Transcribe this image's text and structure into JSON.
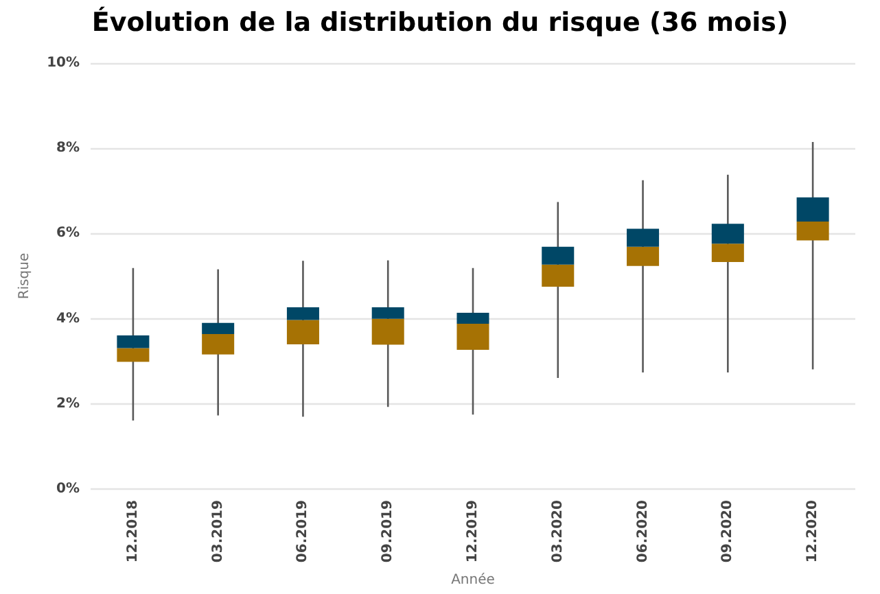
{
  "chart_data": {
    "type": "box",
    "title": "Évolution de la distribution du risque (36 mois)",
    "xlabel": "Année",
    "ylabel": "Risque",
    "categories": [
      "12.2018",
      "03.2019",
      "06.2019",
      "09.2019",
      "12.2019",
      "03.2020",
      "06.2020",
      "09.2020",
      "12.2020"
    ],
    "series": [
      {
        "color": "#004766",
        "colors": [
          "#a67204",
          "#a67204",
          "#a67204",
          "#a67204",
          "#a67204",
          "#a67204",
          "#a67204",
          "#a67204",
          "#a67204"
        ],
        "boxes": [
          {
            "low": 1.61,
            "q1": 2.99,
            "median": 3.31,
            "q3": 3.61,
            "high": 5.19
          },
          {
            "low": 1.73,
            "q1": 3.16,
            "median": 3.64,
            "q3": 3.9,
            "high": 5.16
          },
          {
            "low": 1.7,
            "q1": 3.4,
            "median": 3.97,
            "q3": 4.27,
            "high": 5.36
          },
          {
            "low": 1.93,
            "q1": 3.39,
            "median": 4.0,
            "q3": 4.27,
            "high": 5.37
          },
          {
            "low": 1.75,
            "q1": 3.27,
            "median": 3.88,
            "q3": 4.14,
            "high": 5.19
          },
          {
            "low": 2.61,
            "q1": 4.75,
            "median": 5.27,
            "q3": 5.69,
            "high": 6.74
          },
          {
            "low": 2.74,
            "q1": 5.24,
            "median": 5.69,
            "q3": 6.11,
            "high": 7.25
          },
          {
            "low": 2.74,
            "q1": 5.33,
            "median": 5.76,
            "q3": 6.23,
            "high": 7.38
          },
          {
            "low": 2.81,
            "q1": 5.84,
            "median": 6.28,
            "q3": 6.85,
            "high": 8.15
          }
        ]
      }
    ],
    "ylim": [
      0,
      10
    ],
    "yticks": [
      {
        "value": 0,
        "label": "0%"
      },
      {
        "value": 2,
        "label": "2%"
      },
      {
        "value": 4,
        "label": "4%"
      },
      {
        "value": 6,
        "label": "6%"
      },
      {
        "value": 8,
        "label": "8%"
      },
      {
        "value": 10,
        "label": "10%"
      }
    ],
    "grid": "y"
  }
}
